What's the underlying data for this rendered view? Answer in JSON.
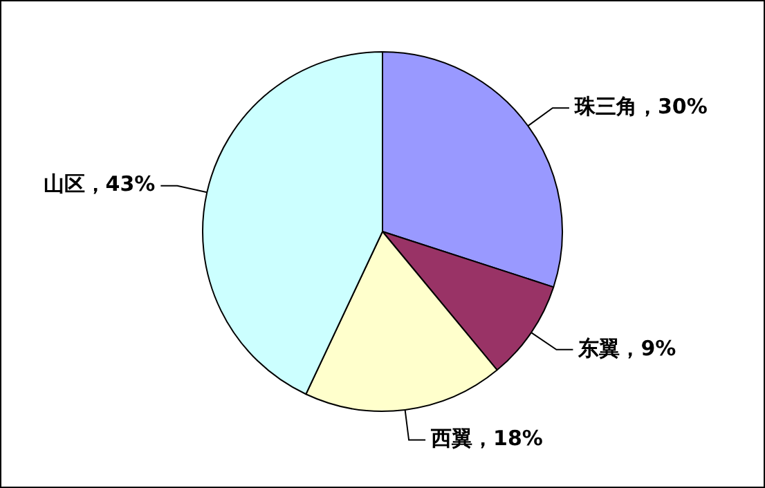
{
  "chart_data": {
    "type": "pie",
    "categories": [
      "珠三角",
      "东翼",
      "西翼",
      "山区"
    ],
    "values": [
      30,
      9,
      18,
      43
    ],
    "value_labels": [
      "30%",
      "9%",
      "18%",
      "43%"
    ],
    "colors": [
      "#9999ff",
      "#993366",
      "#ffffcc",
      "#ccffff"
    ],
    "legend": false
  }
}
